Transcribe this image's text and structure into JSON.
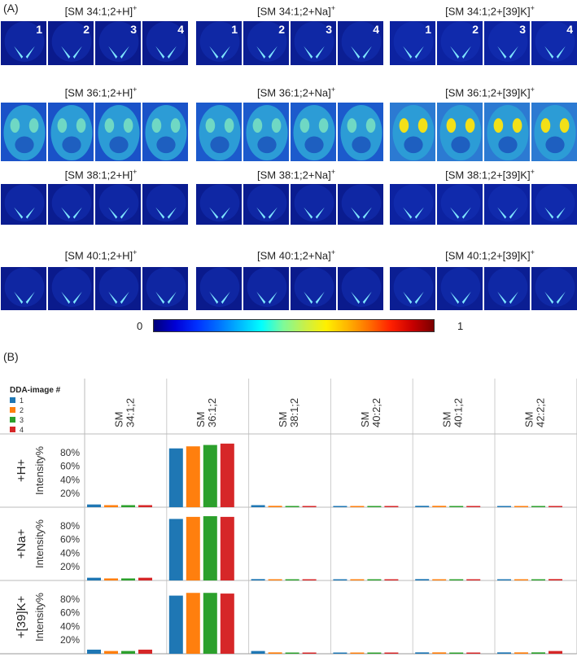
{
  "panel_a": {
    "label": "(A)",
    "colorbar": {
      "min_label": "0",
      "max_label": "1",
      "stops": [
        "#00007a",
        "#0000d6",
        "#0030ff",
        "#0070ff",
        "#00b8ff",
        "#00ffff",
        "#7dfa9a",
        "#c8f04a",
        "#fff000",
        "#ffb400",
        "#ff6e00",
        "#ff2000",
        "#c80000",
        "#7a0000"
      ]
    },
    "rows": [
      {
        "cols": [
          {
            "title": "[SM 34:1;2+H]",
            "sup": "+",
            "nums": [
              "1",
              "2",
              "3",
              "4"
            ],
            "bg": "#0a1a8c"
          },
          {
            "title": "[SM 34:1;2+Na]",
            "sup": "+",
            "nums": [
              "1",
              "2",
              "3",
              "4"
            ],
            "bg": "#0b1e93"
          },
          {
            "title": "[SM 34:1;2+[39]K]",
            "sup": "+",
            "nums": [
              "1",
              "2",
              "3",
              "4"
            ],
            "bg": "#0c22a0"
          }
        ]
      },
      {
        "cols": [
          {
            "title": "[SM 36:1;2+H]",
            "sup": "+",
            "bg": "#1a52c8"
          },
          {
            "title": "[SM 36:1;2+Na]",
            "sup": "+",
            "bg": "#1c5acc"
          },
          {
            "title": "[SM 36:1;2+[39]K]",
            "sup": "+",
            "bg": "#2c7ad2"
          }
        ]
      },
      {
        "cols": [
          {
            "title": "[SM 38:1;2+H]",
            "sup": "+",
            "bg": "#0a1c90"
          },
          {
            "title": "[SM 38:1;2+Na]",
            "sup": "+",
            "bg": "#0a1c90"
          },
          {
            "title": "[SM 38:1;2+[39]K]",
            "sup": "+",
            "bg": "#0c22a0"
          }
        ]
      },
      {
        "cols": [
          {
            "title": "[SM 40:1;2+H]",
            "sup": "+",
            "bg": "#0a1a8c"
          },
          {
            "title": "[SM 40:1;2+Na]",
            "sup": "+",
            "bg": "#0a1a8c"
          },
          {
            "title": "[SM 40:1;2+[39]K]",
            "sup": "+",
            "bg": "#0b1e93"
          }
        ]
      }
    ]
  },
  "chart_data": {
    "type": "bar",
    "panel_label": "(B)",
    "legend_title": "DDA-image #",
    "legend_placement": "top-left",
    "series": [
      {
        "name": "1",
        "color": "#1f77b4"
      },
      {
        "name": "2",
        "color": "#ff7f0e"
      },
      {
        "name": "3",
        "color": "#2ca02c"
      },
      {
        "name": "4",
        "color": "#d62728"
      }
    ],
    "categories": [
      [
        "SM",
        "34:1;2"
      ],
      [
        "SM",
        "36:1;2"
      ],
      [
        "SM",
        "38:1;2"
      ],
      [
        "SM",
        "40:2;2"
      ],
      [
        "SM",
        "40:1;2"
      ],
      [
        "SM",
        "42:2;2"
      ]
    ],
    "rows": [
      {
        "label": "+H+",
        "ylabel": "Intensity%",
        "values": [
          [
            4,
            3,
            3,
            3
          ],
          [
            86,
            89,
            91,
            93
          ],
          [
            3,
            2,
            1,
            0.5
          ],
          [
            1,
            1,
            0.5,
            0.5
          ],
          [
            2,
            2,
            1,
            0.5
          ],
          [
            1.5,
            1,
            1,
            1.5
          ]
        ]
      },
      {
        "label": "+Na+",
        "ylabel": "Intensity%",
        "values": [
          [
            4,
            3,
            3,
            4
          ],
          [
            90,
            93,
            94,
            93
          ],
          [
            2,
            1.5,
            1,
            0.5
          ],
          [
            1,
            1,
            0.5,
            0.5
          ],
          [
            2,
            1.5,
            1,
            1
          ],
          [
            1.5,
            1,
            1,
            2
          ]
        ]
      },
      {
        "label": "+[39]K+",
        "ylabel": "Intensity%",
        "values": [
          [
            6,
            4,
            4,
            6
          ],
          [
            85,
            89,
            89,
            88
          ],
          [
            4,
            2,
            1,
            1
          ],
          [
            1,
            0.5,
            0.5,
            0.5
          ],
          [
            2,
            2,
            1.5,
            1
          ],
          [
            2,
            2,
            2,
            4
          ]
        ]
      }
    ],
    "yticks": [
      "80%",
      "60%",
      "40%",
      "20%"
    ],
    "ylim": [
      0,
      100
    ]
  }
}
